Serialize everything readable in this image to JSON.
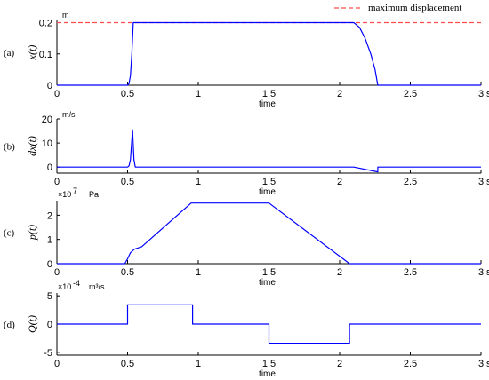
{
  "legend": {
    "label": "maximum displacement",
    "color": "#ff4d4d"
  },
  "series_color": "#0000ff",
  "chart_data": [
    {
      "type": "line",
      "panel_label": "(a)",
      "ylabel": "x(t)",
      "unit": "m",
      "xlabel": "time",
      "x_unit": "s",
      "xlim": [
        0,
        3
      ],
      "ylim": [
        0,
        0.21
      ],
      "x_ticks": [
        "0",
        "0.5",
        "1",
        "1.5",
        "2",
        "2.5",
        "3"
      ],
      "y_ticks": [
        {
          "v": 0,
          "label": "0"
        },
        {
          "v": 0.1,
          "label": "0.1"
        },
        {
          "v": 0.2,
          "label": "0.2"
        }
      ],
      "reference_line": {
        "name": "maximum displacement",
        "y": 0.2
      },
      "x": [
        0,
        0.5,
        0.51,
        0.52,
        0.53,
        0.54,
        2.1,
        2.14,
        2.18,
        2.22,
        2.25,
        2.27,
        3
      ],
      "y": [
        0,
        0,
        0.005,
        0.03,
        0.1,
        0.2,
        0.2,
        0.185,
        0.15,
        0.1,
        0.05,
        0,
        0
      ]
    },
    {
      "type": "line",
      "panel_label": "(b)",
      "ylabel": "dx(t)",
      "unit": "m/s",
      "xlabel": "time",
      "x_unit": "s",
      "xlim": [
        0,
        3
      ],
      "ylim": [
        -2.5,
        20
      ],
      "x_ticks": [
        "0",
        "0.5",
        "1",
        "1.5",
        "2",
        "2.5",
        "3"
      ],
      "y_ticks": [
        {
          "v": 0,
          "label": "0"
        },
        {
          "v": 10,
          "label": "10"
        },
        {
          "v": 20,
          "label": "20"
        }
      ],
      "x": [
        0,
        0.5,
        0.51,
        0.52,
        0.535,
        0.545,
        0.555,
        2.1,
        2.27,
        2.27,
        3
      ],
      "y": [
        0,
        0,
        0.5,
        3,
        15.5,
        3,
        0,
        0,
        -2,
        0,
        0
      ]
    },
    {
      "type": "line",
      "panel_label": "(c)",
      "ylabel": "p(t)",
      "multiplier": "×10",
      "exponent": "7",
      "unit": "Pa",
      "xlabel": "time",
      "x_unit": "s",
      "xlim": [
        0,
        3
      ],
      "ylim": [
        0,
        2.6
      ],
      "x_ticks": [
        "0",
        "0.5",
        "1",
        "1.5",
        "2",
        "2.5",
        "3"
      ],
      "y_ticks": [
        {
          "v": 0,
          "label": "0"
        },
        {
          "v": 1,
          "label": "1"
        },
        {
          "v": 2,
          "label": "2"
        }
      ],
      "x": [
        0,
        0.48,
        0.5,
        0.52,
        0.55,
        0.6,
        0.95,
        1.5,
        2.07,
        3
      ],
      "y": [
        0,
        0,
        0.2,
        0.45,
        0.6,
        0.7,
        2.5,
        2.5,
        0,
        0
      ]
    },
    {
      "type": "line",
      "panel_label": "(d)",
      "ylabel": "Q(t)",
      "multiplier": "×10",
      "exponent": "-4",
      "unit": "m³/s",
      "xlabel": "time",
      "x_unit": "s",
      "xlim": [
        0,
        3
      ],
      "ylim": [
        -5.5,
        5.5
      ],
      "x_ticks": [
        "0",
        "0.5",
        "1",
        "1.5",
        "2",
        "2.5",
        "3"
      ],
      "y_ticks": [
        {
          "v": -5,
          "label": "-5"
        },
        {
          "v": 0,
          "label": "0"
        },
        {
          "v": 5,
          "label": "5"
        }
      ],
      "x": [
        0,
        0.5,
        0.5,
        0.96,
        0.96,
        1.5,
        1.5,
        2.07,
        2.07,
        3
      ],
      "y": [
        0,
        0,
        3.4,
        3.4,
        0,
        0,
        -3.4,
        -3.4,
        0,
        0
      ]
    }
  ]
}
